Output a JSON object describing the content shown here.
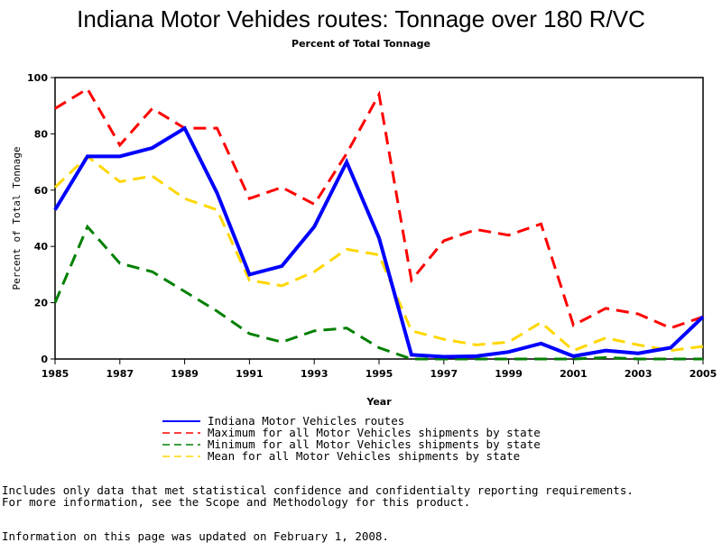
{
  "chart_data": {
    "type": "line",
    "title": "Indiana Motor Vehides routes: Tonnage over 180 R/VC",
    "subtitle": "Percent of Total Tonnage",
    "xlabel": "Year",
    "ylabel": "Percent of Total Tonnage",
    "xlim": [
      1985,
      2005
    ],
    "ylim": [
      0,
      100
    ],
    "xticks": [
      "1985",
      "1987",
      "1989",
      "1991",
      "1993",
      "1995",
      "1997",
      "1999",
      "2001",
      "2003",
      "2005"
    ],
    "yticks": [
      "0",
      "20",
      "40",
      "60",
      "80",
      "100"
    ],
    "x": [
      1985,
      1986,
      1987,
      1988,
      1989,
      1990,
      1991,
      1992,
      1993,
      1994,
      1995,
      1996,
      1997,
      1998,
      1999,
      2000,
      2001,
      2002,
      2003,
      2004,
      2005
    ],
    "legend_position": "bottom",
    "series": [
      {
        "name": "Indiana Motor Vehicles routes",
        "color": "#0000ff",
        "style": "solid",
        "values": [
          53,
          72,
          72,
          75,
          82,
          59,
          30,
          33,
          47,
          70,
          43,
          1.5,
          0.8,
          1,
          2.5,
          5.5,
          1,
          3,
          2,
          4,
          15
        ]
      },
      {
        "name": "Maximum for all Motor Vehicles shipments by state",
        "color": "#ff0000",
        "style": "dashed",
        "values": [
          89,
          96,
          76,
          89,
          82,
          82,
          57,
          61,
          55,
          73,
          94,
          28,
          42,
          46,
          44,
          48,
          12,
          18,
          16,
          11,
          15
        ]
      },
      {
        "name": "Minimum for all Motor Vehicles shipments by state",
        "color": "#008000",
        "style": "dashed",
        "values": [
          20,
          47,
          34,
          31,
          24,
          17,
          9,
          6,
          10,
          11,
          4,
          0,
          0,
          0,
          0,
          0,
          0,
          0.5,
          0,
          0,
          0
        ]
      },
      {
        "name": "Mean for all Motor Vehicles shipments by state",
        "color": "#ffd700",
        "style": "dashed",
        "values": [
          61,
          72,
          63,
          65,
          57,
          53,
          28,
          26,
          31,
          39,
          37,
          10,
          7,
          5,
          6,
          13,
          3,
          7.5,
          5,
          3,
          4.5
        ]
      }
    ]
  },
  "notes": {
    "line1": "Includes only data that met statistical confidence and confidentialty reporting requirements.",
    "line2": "For more information, see the Scope and Methodology for this product.",
    "line3": "Information on this page was updated on February 1, 2008."
  }
}
